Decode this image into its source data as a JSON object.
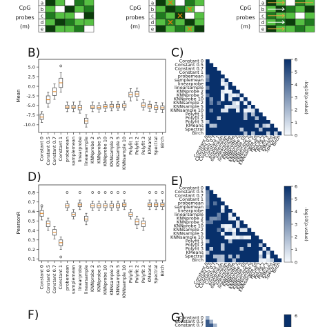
{
  "panel_labels": [
    "B)",
    "C)",
    "D)",
    "E)",
    "F)",
    "G)"
  ],
  "matrix_header": {
    "rows": [
      "a",
      "b",
      "c",
      "d",
      "e"
    ],
    "label_cpg": "CpG",
    "label_probes": "probes",
    "label_m": "(m)",
    "matrices": [
      {
        "cells": [
          [
            "#0b3d0b",
            "#56c043",
            "#ffffff",
            "#1f7a1f",
            "#56c043"
          ],
          [
            "#56c043",
            "#ffffff",
            "#0b3d0b",
            "#56c043",
            "#1f7a1f"
          ],
          [
            "#1f7a1f",
            "#56c043",
            "#56c043",
            "#ffffff",
            "#0b3d0b"
          ],
          [
            "#56c043",
            "#0b3d0b",
            "#1f7a1f",
            "#56c043",
            "#56c043"
          ],
          [
            "#0b3d0b",
            "#56c043",
            "#56c043",
            "#1f7a1f",
            "#ffffff"
          ]
        ]
      },
      {
        "cells": [
          [
            "#0b3d0b",
            "#56c043",
            "#ffffff",
            "#1f7a1f",
            "#56c043"
          ],
          [
            "#56c043",
            "#0b3d0b",
            "#1f7a1f",
            "#56c043",
            "#ffffff"
          ],
          [
            "#1f7a1f",
            "#56c043",
            "#0b3d0b",
            "#ffffff",
            "#56c043"
          ],
          [
            "#56c043",
            "#1f7a1f",
            "#56c043",
            "#0b3d0b",
            "#56c043"
          ],
          [
            "#0b3d0b",
            "#56c043",
            "#1f7a1f",
            "#56c043",
            "#0b3d0b"
          ]
        ]
      },
      {
        "cells": [
          [
            "#0b3d0b",
            "#56c043",
            "#ffffff",
            "#1f7a1f",
            "#56c043"
          ],
          [
            "#56c043",
            "#0b3d0b",
            "#1f7a1f",
            "#56c043",
            "#0b3d0b"
          ],
          [
            "#1f7a1f",
            "#56c043",
            "#56c043",
            "#ffffff",
            "#56c043"
          ],
          [
            "#56c043",
            "#1f7a1f",
            "#0b3d0b",
            "#56c043",
            "#1f7a1f"
          ],
          [
            "#0b3d0b",
            "#56c043",
            "#56c043",
            "#1f7a1f",
            "#56c043"
          ]
        ]
      }
    ]
  },
  "methods": [
    "Constant 0",
    "Constant 0.5",
    "Constant 0.7",
    "Constant 1",
    "probemean",
    "samplemean",
    "linearprobe",
    "linearsample",
    "KNNprobe 2",
    "KNNprobe 5",
    "KNNprobe 10",
    "KNNsample 2",
    "KNNsample 5",
    "KNNsample 10",
    "Polyfit 1",
    "Polyfit 2",
    "Polyfit 3",
    "KMeans",
    "Spectral",
    "Birch"
  ],
  "chart_data": [
    {
      "type": "box",
      "panel": "B)",
      "ylabel": "Mean",
      "yticks": [
        -10.0,
        -7.5,
        -5.0,
        -2.5,
        0.0,
        2.5,
        5.0
      ],
      "ylim": [
        -12,
        7
      ],
      "boxes": [
        {
          "q1": -8.6,
          "median": -8.0,
          "q3": -7.2,
          "wlo": -9.4,
          "whi": -6.6,
          "outliers": []
        },
        {
          "q1": -4.4,
          "median": -3.5,
          "q3": -2.5,
          "wlo": -5.4,
          "whi": -1.5,
          "outliers": []
        },
        {
          "q1": -2.4,
          "median": -1.4,
          "q3": -0.4,
          "wlo": -3.4,
          "whi": 0.6,
          "outliers": []
        },
        {
          "q1": -0.3,
          "median": 0.9,
          "q3": 2.1,
          "wlo": -1.5,
          "whi": 3.5,
          "outliers": [
            5.3
          ]
        },
        {
          "q1": -5.8,
          "median": -5.4,
          "q3": -4.9,
          "wlo": -6.6,
          "whi": -4.1,
          "outliers": []
        },
        {
          "q1": -5.8,
          "median": -5.4,
          "q3": -4.9,
          "wlo": -6.6,
          "whi": -4.1,
          "outliers": []
        },
        {
          "q1": -6.1,
          "median": -5.5,
          "q3": -4.9,
          "wlo": -7.0,
          "whi": -3.9,
          "outliers": []
        },
        {
          "q1": -9.7,
          "median": -9.0,
          "q3": -8.3,
          "wlo": -10.6,
          "whi": -7.4,
          "outliers": []
        },
        {
          "q1": -5.8,
          "median": -5.4,
          "q3": -4.9,
          "wlo": -6.6,
          "whi": -4.1,
          "outliers": []
        },
        {
          "q1": -5.9,
          "median": -5.5,
          "q3": -5.0,
          "wlo": -6.7,
          "whi": -4.3,
          "outliers": []
        },
        {
          "q1": -5.7,
          "median": -5.3,
          "q3": -4.8,
          "wlo": -6.5,
          "whi": -4.1,
          "outliers": []
        },
        {
          "q1": -5.6,
          "median": -5.2,
          "q3": -4.7,
          "wlo": -6.4,
          "whi": -4.0,
          "outliers": []
        },
        {
          "q1": -5.6,
          "median": -5.2,
          "q3": -4.7,
          "wlo": -6.3,
          "whi": -4.0,
          "outliers": []
        },
        {
          "q1": -5.5,
          "median": -5.1,
          "q3": -4.6,
          "wlo": -6.2,
          "whi": -3.9,
          "outliers": []
        },
        {
          "q1": -2.8,
          "median": -2.2,
          "q3": -1.5,
          "wlo": -3.8,
          "whi": -0.6,
          "outliers": []
        },
        {
          "q1": -2.6,
          "median": -2.0,
          "q3": -1.3,
          "wlo": -3.6,
          "whi": -0.5,
          "outliers": []
        },
        {
          "q1": -5.4,
          "median": -4.9,
          "q3": -4.3,
          "wlo": -6.2,
          "whi": -3.5,
          "outliers": []
        },
        {
          "q1": -5.7,
          "median": -5.2,
          "q3": -4.7,
          "wlo": -6.5,
          "whi": -3.9,
          "outliers": []
        },
        {
          "q1": -6.0,
          "median": -5.5,
          "q3": -5.0,
          "wlo": -6.8,
          "whi": -4.2,
          "outliers": []
        },
        {
          "q1": -6.0,
          "median": -5.6,
          "q3": -5.1,
          "wlo": -6.9,
          "whi": -4.3,
          "outliers": []
        }
      ]
    },
    {
      "type": "heatmap",
      "panel": "C)",
      "colorbar_label": "-log10(p-value)",
      "colorbar_ticks": [
        0,
        1,
        2,
        3,
        4,
        5,
        6
      ],
      "range": [
        0,
        6
      ],
      "values_seed": 1
    },
    {
      "type": "box",
      "panel": "D)",
      "ylabel": "PearsonR",
      "yticks": [
        0.1,
        0.2,
        0.3,
        0.4,
        0.5,
        0.6,
        0.7,
        0.8
      ],
      "ylim": [
        0.08,
        0.88
      ],
      "boxes": [
        {
          "q1": 0.55,
          "median": 0.58,
          "q3": 0.61,
          "wlo": 0.51,
          "whi": 0.64,
          "outliers": [
            0.66
          ]
        },
        {
          "q1": 0.44,
          "median": 0.47,
          "q3": 0.5,
          "wlo": 0.4,
          "whi": 0.53,
          "outliers": []
        },
        {
          "q1": 0.35,
          "median": 0.38,
          "q3": 0.41,
          "wlo": 0.31,
          "whi": 0.44,
          "outliers": []
        },
        {
          "q1": 0.24,
          "median": 0.27,
          "q3": 0.3,
          "wlo": 0.2,
          "whi": 0.33,
          "outliers": [
            0.12
          ]
        },
        {
          "q1": 0.64,
          "median": 0.66,
          "q3": 0.68,
          "wlo": 0.61,
          "whi": 0.71,
          "outliers": [
            0.8
          ]
        },
        {
          "q1": 0.55,
          "median": 0.57,
          "q3": 0.59,
          "wlo": 0.52,
          "whi": 0.62,
          "outliers": []
        },
        {
          "q1": 0.65,
          "median": 0.67,
          "q3": 0.69,
          "wlo": 0.62,
          "whi": 0.72,
          "outliers": [
            0.8
          ]
        },
        {
          "q1": 0.5,
          "median": 0.52,
          "q3": 0.55,
          "wlo": 0.46,
          "whi": 0.58,
          "outliers": []
        },
        {
          "q1": 0.64,
          "median": 0.66,
          "q3": 0.68,
          "wlo": 0.61,
          "whi": 0.71,
          "outliers": [
            0.8
          ]
        },
        {
          "q1": 0.64,
          "median": 0.66,
          "q3": 0.68,
          "wlo": 0.61,
          "whi": 0.71,
          "outliers": [
            0.8
          ]
        },
        {
          "q1": 0.64,
          "median": 0.66,
          "q3": 0.68,
          "wlo": 0.61,
          "whi": 0.71,
          "outliers": [
            0.8
          ]
        },
        {
          "q1": 0.64,
          "median": 0.66,
          "q3": 0.68,
          "wlo": 0.61,
          "whi": 0.71,
          "outliers": [
            0.8
          ]
        },
        {
          "q1": 0.64,
          "median": 0.66,
          "q3": 0.68,
          "wlo": 0.61,
          "whi": 0.71,
          "outliers": [
            0.8
          ]
        },
        {
          "q1": 0.65,
          "median": 0.67,
          "q3": 0.69,
          "wlo": 0.62,
          "whi": 0.72,
          "outliers": [
            0.8
          ]
        },
        {
          "q1": 0.55,
          "median": 0.57,
          "q3": 0.59,
          "wlo": 0.52,
          "whi": 0.62,
          "outliers": []
        },
        {
          "q1": 0.46,
          "median": 0.49,
          "q3": 0.52,
          "wlo": 0.42,
          "whi": 0.55,
          "outliers": []
        },
        {
          "q1": 0.44,
          "median": 0.47,
          "q3": 0.5,
          "wlo": 0.4,
          "whi": 0.53,
          "outliers": []
        },
        {
          "q1": 0.65,
          "median": 0.67,
          "q3": 0.69,
          "wlo": 0.62,
          "whi": 0.72,
          "outliers": [
            0.8
          ]
        },
        {
          "q1": 0.65,
          "median": 0.67,
          "q3": 0.69,
          "wlo": 0.62,
          "whi": 0.72,
          "outliers": [
            0.8
          ]
        },
        {
          "q1": 0.65,
          "median": 0.67,
          "q3": 0.69,
          "wlo": 0.62,
          "whi": 0.72,
          "outliers": [
            0.8
          ]
        }
      ]
    },
    {
      "type": "heatmap",
      "panel": "E)",
      "colorbar_label": "-log10(p-value)",
      "colorbar_ticks": [
        0,
        1,
        2,
        3,
        4,
        5,
        6
      ],
      "range": [
        0,
        6
      ],
      "values_seed": 2
    },
    {
      "type": "heatmap",
      "panel": "G)",
      "colorbar_ticks": [
        6
      ],
      "visible_rows": [
        "Constant 0",
        "Constant 0.5",
        "Constant 0.7"
      ]
    }
  ],
  "colors": {
    "box": "#555555",
    "heat_low": "#f7fbff",
    "heat_high": "#08306b"
  }
}
